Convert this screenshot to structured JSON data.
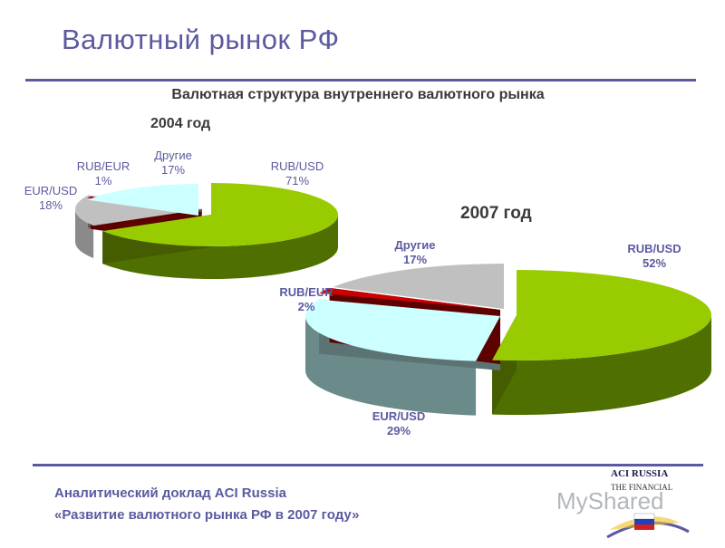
{
  "page": {
    "title": "Валютный рынок РФ",
    "subtitle": "Валютная структура внутреннего валютного рынка",
    "footer_line1": "Аналитический доклад ACI Russia",
    "footer_line2": "«Развитие валютного рынка РФ в 2007 году»",
    "logo_name": "ACI RUSSIA",
    "logo_sub": "THE FINANCIAL",
    "watermark": "MyShared"
  },
  "colors": {
    "title": "#5b5aa0",
    "RUB/USD": "#99cc00",
    "EUR/USD": "#ccffff",
    "RUB/EUR": "#cc0000",
    "Другие": "#c0c0c0"
  },
  "chart_data": [
    {
      "type": "pie",
      "title": "2004 год",
      "slices": [
        {
          "name": "RUB/USD",
          "value": 71,
          "label": "71%"
        },
        {
          "name": "Другие",
          "value": 17,
          "label": "17%"
        },
        {
          "name": "RUB/EUR",
          "value": 1,
          "label": "1%"
        },
        {
          "name": "EUR/USD",
          "value": 18,
          "label": "18%"
        }
      ]
    },
    {
      "type": "pie",
      "title": "2007 год",
      "slices": [
        {
          "name": "RUB/USD",
          "value": 52,
          "label": "52%"
        },
        {
          "name": "EUR/USD",
          "value": 29,
          "label": "29%"
        },
        {
          "name": "RUB/EUR",
          "value": 2,
          "label": "2%"
        },
        {
          "name": "Другие",
          "value": 17,
          "label": "17%"
        }
      ]
    }
  ]
}
